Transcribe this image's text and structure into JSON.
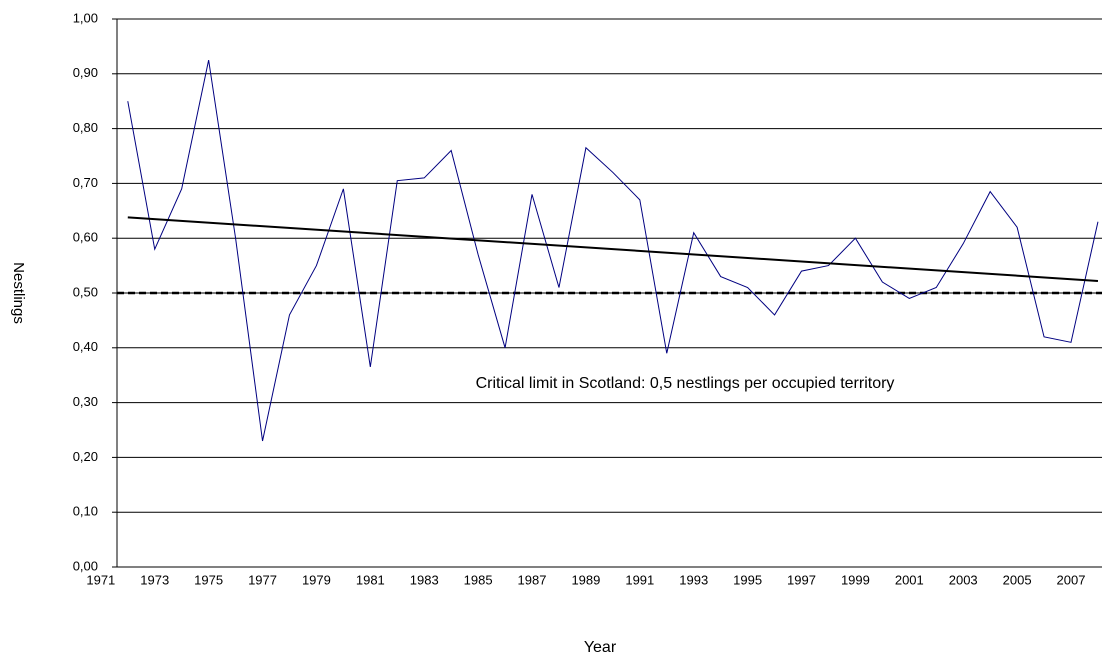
{
  "chart_data": {
    "type": "line",
    "x_label": "Year",
    "y_label": "Nestlings",
    "x": [
      1972,
      1973,
      1974,
      1975,
      1976,
      1977,
      1978,
      1979,
      1980,
      1981,
      1982,
      1983,
      1984,
      1985,
      1986,
      1987,
      1988,
      1989,
      1990,
      1991,
      1992,
      1993,
      1994,
      1995,
      1996,
      1997,
      1998,
      1999,
      2000,
      2001,
      2002,
      2003,
      2004,
      2005,
      2006,
      2007,
      2008
    ],
    "series": [
      {
        "color": "#000080",
        "values": [
          0.85,
          0.58,
          0.69,
          0.925,
          0.6,
          0.23,
          0.46,
          0.55,
          0.69,
          0.365,
          0.705,
          0.71,
          0.76,
          0.57,
          0.4,
          0.68,
          0.51,
          0.765,
          0.72,
          0.67,
          0.39,
          0.61,
          0.53,
          0.51,
          0.46,
          0.54,
          0.55,
          0.6,
          0.52,
          0.49,
          0.51,
          0.59,
          0.685,
          0.62,
          0.42,
          0.41,
          0.63
        ]
      }
    ],
    "trend": {
      "color": "#000000",
      "x": [
        1972,
        2008
      ],
      "values": [
        0.638,
        0.522
      ]
    },
    "reference_line": {
      "value": 0.5,
      "color": "#000000",
      "label": "Critical limit in Scotland: 0,5 nestlings per occupied territory"
    },
    "xlim": [
      1971.6,
      2008.15
    ],
    "xticks": [
      1971,
      1973,
      1975,
      1977,
      1979,
      1981,
      1983,
      1985,
      1987,
      1989,
      1991,
      1993,
      1995,
      1997,
      1999,
      2001,
      2003,
      2005,
      2007
    ],
    "ylim": [
      0,
      1
    ],
    "yticks": [
      {
        "value": 0,
        "label": "0,00"
      },
      {
        "value": 0.1,
        "label": "0,10"
      },
      {
        "value": 0.2,
        "label": "0,20"
      },
      {
        "value": 0.3,
        "label": "0,30"
      },
      {
        "value": 0.4,
        "label": "0,40"
      },
      {
        "value": 0.5,
        "label": "0,50"
      },
      {
        "value": 0.6,
        "label": "0,60"
      },
      {
        "value": 0.7,
        "label": "0,70"
      },
      {
        "value": 0.8,
        "label": "0,80"
      },
      {
        "value": 0.9,
        "label": "0,90"
      },
      {
        "value": 1,
        "label": "1,00"
      }
    ],
    "grid": true
  }
}
